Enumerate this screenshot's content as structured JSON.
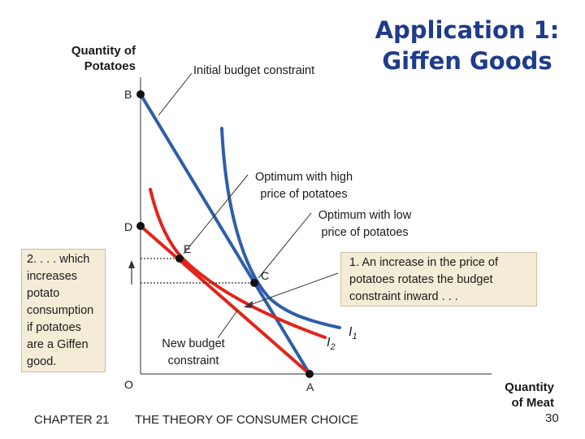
{
  "title": {
    "line1": "Application 1:",
    "line2": "Giffen Goods"
  },
  "axes": {
    "y_title_line1": "Quantity of",
    "y_title_line2": "Potatoes",
    "x_title_line1": "Quantity",
    "x_title_line2": "of Meat",
    "origin": "O"
  },
  "points": {
    "A": "A",
    "B": "B",
    "C": "C",
    "D": "D",
    "E": "E"
  },
  "callouts": {
    "initial_budget": "Initial budget constraint",
    "optimum_high_1": "Optimum with high",
    "optimum_high_2": "price of potatoes",
    "optimum_low_1": "Optimum with low",
    "optimum_low_2": "price of potatoes",
    "new_budget_1": "New budget",
    "new_budget_2": "constraint"
  },
  "curves": {
    "I1": "I",
    "I1_sub": "1",
    "I2": "I",
    "I2_sub": "2"
  },
  "box_right": {
    "lines": [
      "1. An increase in the price of",
      "potatoes rotates the budget",
      "constraint inward . . ."
    ]
  },
  "box_left": {
    "lines": [
      "2. . . . which",
      "increases",
      "potato",
      "consumption",
      "if potatoes",
      "are a Giffen",
      "good."
    ]
  },
  "footer": {
    "chapter": "CHAPTER 21",
    "subject": "THE THEORY OF CONSUMER CHOICE",
    "page": "30"
  },
  "colors": {
    "blue_curve": "#2e5ea8",
    "red_curve": "#e2231a",
    "title": "#1f3b8c",
    "box_fill": "#f4ecd6"
  }
}
